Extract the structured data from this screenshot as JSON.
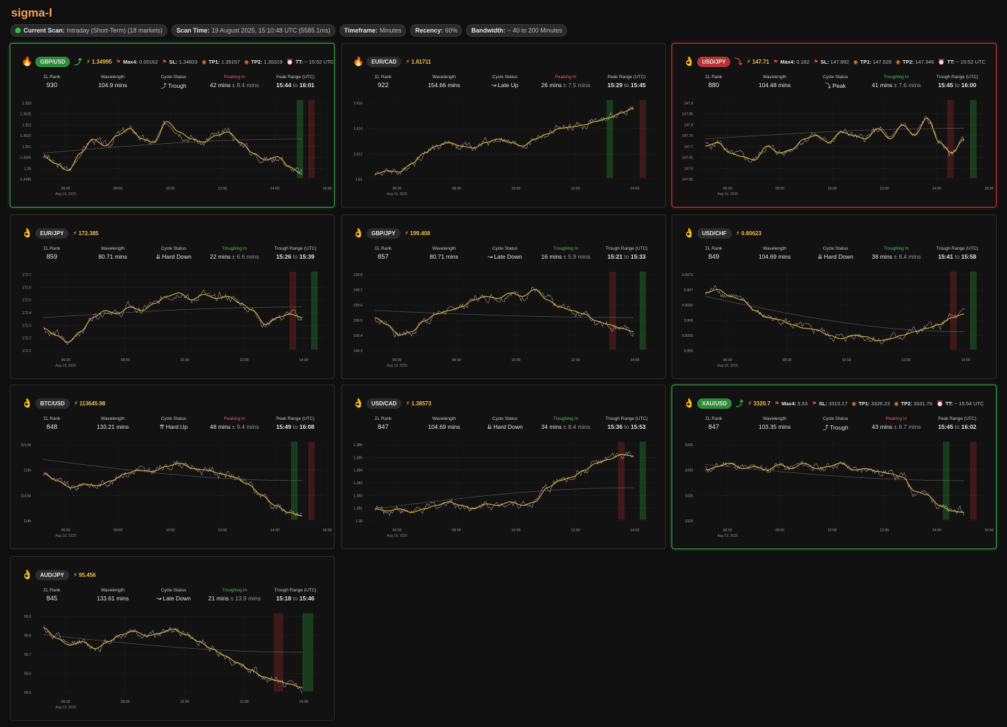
{
  "app": {
    "title": "sigma-l"
  },
  "scan": {
    "current_label": "Current Scan:",
    "current_value": "Intraday (Short-Term) (18 markets)",
    "time_label": "Scan Time:",
    "time_value": "19 August 2025, 15:10:48 UTC  (5585.1ms)",
    "timeframe_label": "Timeframe:",
    "timeframe_value": "Minutes",
    "recency_label": "Recency:",
    "recency_value": "60%",
    "bandwidth_label": "Bandwidth:",
    "bandwidth_value": "~ 40 to 200 Minutes"
  },
  "labels": {
    "rank": "ΣL Rank",
    "wavelength": "Wavelength",
    "cycle_status": "Cycle Status",
    "max4": "Max4:",
    "sl": "SL:",
    "tp1": "TP1:",
    "tp2": "TP2:",
    "tt": "TT:"
  },
  "colors": {
    "bull": "#3fb34a",
    "bear": "#d63a3a",
    "price_line": "#bdbdbd",
    "cycle_line": "#e8b33a",
    "accent": "#f2a25c"
  },
  "cards": [
    {
      "symbol": "GBP/USD",
      "icon": "fire-icon",
      "state": "bull",
      "price": "1.34995",
      "max4": "0.00162",
      "sl": "1.34833",
      "tp1": "1.35157",
      "tp2": "1.35319",
      "tt": "~ 15:52 UTC",
      "rank": "930",
      "wavelength": "104.9 mins",
      "status": "Trough",
      "status_icon": "⤴",
      "phase_label": "Peaking In",
      "phase_color": "red",
      "phase_mins": "42 mins",
      "phase_err": "± 8.4 mins",
      "range_label": "Peak Range (UTC)",
      "range_from": "15:44",
      "range_to": "16:01"
    },
    {
      "symbol": "EUR/CAD",
      "icon": "fire-icon",
      "state": "none",
      "price": "1.61711",
      "rank": "922",
      "wavelength": "154.66 mins",
      "status": "Late Up",
      "status_icon": "↝",
      "phase_label": "Peaking In",
      "phase_color": "red",
      "phase_mins": "26 mins",
      "phase_err": "± 7.5 mins",
      "range_label": "Peak Range (UTC)",
      "range_from": "15:29",
      "range_to": "15:45"
    },
    {
      "symbol": "USD/JPY",
      "icon": "ok-hand-icon",
      "state": "bear",
      "price": "147.71",
      "max4": "0.182",
      "sl": "147.892",
      "tp1": "147.528",
      "tp2": "147.346",
      "tt": "~ 15:52 UTC",
      "rank": "880",
      "wavelength": "104.48 mins",
      "status": "Peak",
      "status_icon": "⤵",
      "phase_label": "Troughing In",
      "phase_color": "green",
      "phase_mins": "41 mins",
      "phase_err": "± 7.6 mins",
      "range_label": "Trough Range (UTC)",
      "range_from": "15:45",
      "range_to": "16:00"
    },
    {
      "symbol": "EUR/JPY",
      "icon": "ok-hand-icon",
      "state": "none",
      "price": "172.385",
      "rank": "859",
      "wavelength": "80.71 mins",
      "status": "Hard Down",
      "status_icon": "⇊",
      "phase_label": "Troughing In",
      "phase_color": "green",
      "phase_mins": "22 mins",
      "phase_err": "± 6.6 mins",
      "range_label": "Trough Range (UTC)",
      "range_from": "15:26",
      "range_to": "15:39"
    },
    {
      "symbol": "GBP/JPY",
      "icon": "ok-hand-icon",
      "state": "none",
      "price": "199.408",
      "rank": "857",
      "wavelength": "80.71 mins",
      "status": "Late Down",
      "status_icon": "↝",
      "phase_label": "Troughing In",
      "phase_color": "green",
      "phase_mins": "16 mins",
      "phase_err": "± 5.9 mins",
      "range_label": "Trough Range (UTC)",
      "range_from": "15:21",
      "range_to": "15:33"
    },
    {
      "symbol": "USD/CHF",
      "icon": "ok-hand-icon",
      "state": "none",
      "price": "0.80623",
      "rank": "849",
      "wavelength": "104.69 mins",
      "status": "Hard Down",
      "status_icon": "⇊",
      "phase_label": "Troughing In",
      "phase_color": "green",
      "phase_mins": "38 mins",
      "phase_err": "± 8.4 mins",
      "range_label": "Trough Range (UTC)",
      "range_from": "15:41",
      "range_to": "15:58"
    },
    {
      "symbol": "BTC/USD",
      "icon": "ok-hand-icon",
      "state": "none",
      "price": "113645.98",
      "rank": "848",
      "wavelength": "133.21 mins",
      "status": "Hard Up",
      "status_icon": "⇈",
      "phase_label": "Peaking In",
      "phase_color": "red",
      "phase_mins": "48 mins",
      "phase_err": "± 9.4 mins",
      "range_label": "Peak Range (UTC)",
      "range_from": "15:49",
      "range_to": "16:08"
    },
    {
      "symbol": "USD/CAD",
      "icon": "ok-hand-icon",
      "state": "none",
      "price": "1.38573",
      "rank": "847",
      "wavelength": "104.69 mins",
      "status": "Hard Down",
      "status_icon": "⇊",
      "phase_label": "Troughing In",
      "phase_color": "green",
      "phase_mins": "34 mins",
      "phase_err": "± 8.4 mins",
      "range_label": "Trough Range (UTC)",
      "range_from": "15:36",
      "range_to": "15:53"
    },
    {
      "symbol": "XAU/USD",
      "icon": "ok-hand-icon",
      "state": "bull",
      "price": "3320.7",
      "max4": "5.53",
      "sl": "3315.17",
      "tp1": "3326.23",
      "tp2": "3331.76",
      "tt": "~ 15:54 UTC",
      "rank": "847",
      "wavelength": "103.35 mins",
      "status": "Trough",
      "status_icon": "⤴",
      "phase_label": "Peaking In",
      "phase_color": "red",
      "phase_mins": "43 mins",
      "phase_err": "± 8.7 mins",
      "range_label": "Peak Range (UTC)",
      "range_from": "15:45",
      "range_to": "16:02"
    },
    {
      "symbol": "AUD/JPY",
      "icon": "ok-hand-icon",
      "state": "none",
      "price": "95.456",
      "rank": "845",
      "wavelength": "133.61 mins",
      "status": "Late Down",
      "status_icon": "↝",
      "phase_label": "Troughing In",
      "phase_color": "green",
      "phase_mins": "21 mins",
      "phase_err": "± 13.9 mins",
      "range_label": "Trough Range (UTC)",
      "range_from": "15:18",
      "range_to": "15:46"
    }
  ],
  "chart_data": [
    {
      "type": "line",
      "title": "GBP/USD",
      "date_label": "Aug 19, 2025",
      "xticks": [
        "06:00",
        "08:00",
        "10:00",
        "12:00",
        "14:00",
        "16:00"
      ],
      "yticks": [
        "1.353",
        "1.3525",
        "1.352",
        "1.3515",
        "1.351",
        "1.3505",
        "1.35",
        "1.3495"
      ],
      "ylim": [
        1.3495,
        1.3532
      ],
      "shape": [
        0.3,
        0.2,
        0.1,
        0.35,
        0.55,
        0.45,
        0.6,
        0.7,
        0.55,
        0.5,
        0.8,
        0.65,
        0.55,
        0.5,
        0.6,
        0.65,
        0.5,
        0.35,
        0.25,
        0.3,
        0.15,
        0.05
      ],
      "trend": [
        0.35,
        0.55
      ],
      "bands": [
        [
          "green",
          0.905,
          0.925
        ],
        [
          "red",
          0.945,
          0.965
        ]
      ]
    },
    {
      "type": "line",
      "title": "EUR/CAD",
      "date_label": "Aug 19, 2025",
      "xticks": [
        "06:00",
        "08:00",
        "10:00",
        "12:00",
        "14:00"
      ],
      "yticks": [
        "1.616",
        "1.614",
        "1.612",
        "1.61"
      ],
      "ylim": [
        1.6097,
        1.6175
      ],
      "shape": [
        0.05,
        0.1,
        0.08,
        0.2,
        0.35,
        0.45,
        0.5,
        0.45,
        0.42,
        0.5,
        0.55,
        0.5,
        0.45,
        0.55,
        0.62,
        0.7,
        0.72,
        0.75,
        0.8,
        0.85,
        0.92,
        0.98
      ],
      "trend": null,
      "bands": [
        [
          "green",
          0.83,
          0.85
        ],
        [
          "red",
          0.945,
          0.965
        ]
      ]
    },
    {
      "type": "line",
      "title": "USD/JPY",
      "date_label": "Aug 19, 2025",
      "xticks": [
        "06:00",
        "08:00",
        "10:00",
        "12:00",
        "14:00",
        "16:00"
      ],
      "yticks": [
        "147.9",
        "147.85",
        "147.8",
        "147.75",
        "147.7",
        "147.65",
        "147.6",
        "147.55"
      ],
      "ylim": [
        147.55,
        147.91
      ],
      "shape": [
        0.45,
        0.5,
        0.35,
        0.3,
        0.25,
        0.45,
        0.35,
        0.4,
        0.55,
        0.6,
        0.5,
        0.65,
        0.6,
        0.55,
        0.7,
        0.55,
        0.75,
        0.6,
        0.85,
        0.5,
        0.35,
        0.55
      ],
      "trend": [
        0.55,
        0.7
      ],
      "bands": [
        [
          "red",
          0.865,
          0.885
        ],
        [
          "green",
          0.945,
          0.965
        ]
      ]
    },
    {
      "type": "line",
      "title": "EUR/JPY",
      "date_label": "Aug 19, 2025",
      "xticks": [
        "06:00",
        "08:00",
        "10:00",
        "12:00",
        "14:00"
      ],
      "yticks": [
        "172.7",
        "172.6",
        "172.5",
        "172.4",
        "172.3",
        "172.2",
        "172.1"
      ],
      "ylim": [
        172.05,
        172.72
      ],
      "shape": [
        0.3,
        0.2,
        0.1,
        0.25,
        0.45,
        0.55,
        0.5,
        0.6,
        0.55,
        0.65,
        0.75,
        0.8,
        0.7,
        0.78,
        0.72,
        0.75,
        0.65,
        0.55,
        0.35,
        0.45,
        0.5,
        0.45
      ],
      "trend": [
        0.45,
        0.6
      ],
      "bands": [
        [
          "red",
          0.88,
          0.9
        ],
        [
          "green",
          0.955,
          0.975
        ]
      ]
    },
    {
      "type": "line",
      "title": "GBP/JPY",
      "date_label": "Aug 19, 2025",
      "xticks": [
        "06:00",
        "08:00",
        "10:00",
        "12:00",
        "14:00"
      ],
      "yticks": [
        "199.8",
        "199.7",
        "199.6",
        "199.5",
        "199.4",
        "199.3"
      ],
      "ylim": [
        199.25,
        199.82
      ],
      "shape": [
        0.45,
        0.35,
        0.2,
        0.25,
        0.4,
        0.5,
        0.55,
        0.6,
        0.7,
        0.75,
        0.72,
        0.8,
        0.75,
        0.85,
        0.7,
        0.6,
        0.55,
        0.5,
        0.4,
        0.35,
        0.3,
        0.25
      ],
      "trend": [
        0.55,
        0.45
      ],
      "bands": [
        [
          "red",
          0.84,
          0.86
        ],
        [
          "green",
          0.945,
          0.965
        ]
      ]
    },
    {
      "type": "line",
      "title": "USD/CHF",
      "date_label": "Aug 19, 2025",
      "xticks": [
        "06:00",
        "08:00",
        "10:00",
        "12:00",
        "14:00"
      ],
      "yticks": [
        "0.8075",
        "0.807",
        "0.8065",
        "0.806",
        "0.8055",
        "0.805"
      ],
      "ylim": [
        0.8047,
        0.8077
      ],
      "shape": [
        0.8,
        0.85,
        0.75,
        0.7,
        0.55,
        0.45,
        0.42,
        0.35,
        0.3,
        0.28,
        0.2,
        0.15,
        0.2,
        0.18,
        0.12,
        0.15,
        0.2,
        0.25,
        0.3,
        0.35,
        0.45,
        0.5
      ],
      "trend": [
        0.75,
        0.25
      ],
      "bands": [
        [
          "red",
          0.875,
          0.895
        ],
        [
          "green",
          0.945,
          0.965
        ]
      ]
    },
    {
      "type": "line",
      "title": "BTC/USD",
      "date_label": "Aug 19, 2025",
      "xticks": [
        "06:00",
        "08:00",
        "10:00",
        "12:00",
        "14:00",
        "16:00"
      ],
      "yticks": [
        "115.5k",
        "115k",
        "114.5k",
        "114k"
      ],
      "ylim": [
        113700,
        115800
      ],
      "shape": [
        0.65,
        0.55,
        0.45,
        0.5,
        0.48,
        0.55,
        0.65,
        0.7,
        0.68,
        0.75,
        0.8,
        0.72,
        0.7,
        0.65,
        0.6,
        0.5,
        0.35,
        0.2,
        0.1,
        0.05
      ],
      "trend": [
        0.85,
        0.55
      ],
      "bands": [
        [
          "green",
          0.885,
          0.905
        ],
        [
          "red",
          0.945,
          0.965
        ]
      ]
    },
    {
      "type": "line",
      "title": "USD/CAD",
      "date_label": "Aug 19, 2025",
      "xticks": [
        "06:00",
        "08:00",
        "10:00",
        "12:00",
        "14:00"
      ],
      "yticks": [
        "1.386",
        "1.385",
        "1.384",
        "1.383",
        "1.382",
        "1.381",
        "1.38"
      ],
      "ylim": [
        1.3798,
        1.3862
      ],
      "shape": [
        0.15,
        0.12,
        0.15,
        0.1,
        0.15,
        0.2,
        0.25,
        0.2,
        0.15,
        0.22,
        0.2,
        0.25,
        0.2,
        0.25,
        0.45,
        0.55,
        0.6,
        0.7,
        0.8,
        0.85,
        0.92,
        0.9
      ],
      "trend": [
        0.15,
        0.45
      ],
      "bands": [
        [
          "red",
          0.87,
          0.89
        ],
        [
          "green",
          0.945,
          0.965
        ]
      ]
    },
    {
      "type": "line",
      "title": "XAU/USD",
      "date_label": "Aug 19, 2025",
      "xticks": [
        "06:00",
        "08:00",
        "10:00",
        "12:00",
        "14:00",
        "16:00"
      ],
      "yticks": [
        "3335",
        "3330",
        "3325",
        "3320"
      ],
      "ylim": [
        3319,
        3339
      ],
      "shape": [
        0.7,
        0.75,
        0.8,
        0.72,
        0.75,
        0.7,
        0.78,
        0.72,
        0.8,
        0.72,
        0.75,
        0.8,
        0.7,
        0.72,
        0.68,
        0.65,
        0.6,
        0.4,
        0.35,
        0.2,
        0.12,
        0.1
      ],
      "trend": [
        0.78,
        0.55
      ],
      "bands": [
        [
          "green",
          0.85,
          0.87
        ],
        [
          "red",
          0.945,
          0.965
        ]
      ]
    },
    {
      "type": "line",
      "title": "AUD/JPY",
      "date_label": "Aug 19, 2025",
      "xticks": [
        "06:00",
        "08:00",
        "10:00",
        "12:00",
        "14:00"
      ],
      "yticks": [
        "95.9",
        "95.8",
        "95.7",
        "95.6",
        "95.5"
      ],
      "ylim": [
        95.45,
        95.93
      ],
      "shape": [
        0.9,
        0.75,
        0.65,
        0.7,
        0.6,
        0.7,
        0.8,
        0.85,
        0.78,
        0.82,
        0.88,
        0.8,
        0.7,
        0.6,
        0.5,
        0.4,
        0.3,
        0.2,
        0.15,
        0.1,
        0.05
      ],
      "trend": [
        0.8,
        0.55
      ],
      "bands": [
        [
          "red",
          0.825,
          0.855
        ],
        [
          "green",
          0.925,
          0.96
        ]
      ]
    }
  ]
}
